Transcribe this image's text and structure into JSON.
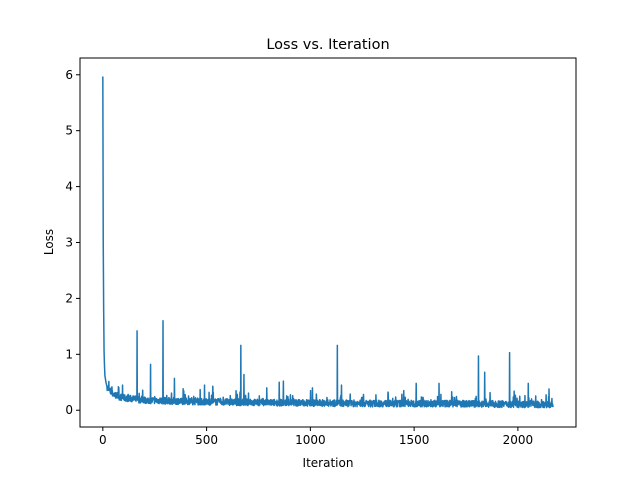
{
  "chart_data": {
    "type": "line",
    "title": "Loss vs. Iteration",
    "xlabel": "Iteration",
    "ylabel": "Loss",
    "xlim": [
      -110,
      2280
    ],
    "ylim": [
      -0.3,
      6.3
    ],
    "xticks": [
      0,
      500,
      1000,
      1500,
      2000
    ],
    "yticks": [
      0,
      1,
      2,
      3,
      4,
      5,
      6
    ],
    "grid": false,
    "legend": "none",
    "line_color": "#1f77b4",
    "iterations": 2170,
    "series": [
      {
        "x": [
          0,
          2,
          4,
          6,
          8,
          10,
          15,
          20,
          30,
          40,
          60,
          80,
          100,
          150,
          200,
          300,
          400,
          500,
          700,
          1000,
          1300,
          1600,
          1900,
          2170
        ],
        "y": [
          5.97,
          3.0,
          1.8,
          1.05,
          0.8,
          0.62,
          0.5,
          0.42,
          0.36,
          0.31,
          0.27,
          0.24,
          0.22,
          0.2,
          0.18,
          0.17,
          0.16,
          0.15,
          0.14,
          0.13,
          0.12,
          0.12,
          0.11,
          0.1
        ],
        "spikes": [
          [
            75,
            0.42
          ],
          [
            95,
            0.45
          ],
          [
            165,
            1.42
          ],
          [
            230,
            0.82
          ],
          [
            290,
            1.6
          ],
          [
            345,
            0.57
          ],
          [
            490,
            0.45
          ],
          [
            530,
            0.43
          ],
          [
            665,
            1.16
          ],
          [
            680,
            0.64
          ],
          [
            790,
            0.4
          ],
          [
            850,
            0.5
          ],
          [
            870,
            0.52
          ],
          [
            1010,
            0.4
          ],
          [
            1130,
            1.16
          ],
          [
            1150,
            0.45
          ],
          [
            1450,
            0.35
          ],
          [
            1510,
            0.48
          ],
          [
            1620,
            0.48
          ],
          [
            1810,
            0.97
          ],
          [
            1840,
            0.68
          ],
          [
            1960,
            1.03
          ],
          [
            2050,
            0.48
          ],
          [
            2150,
            0.38
          ]
        ]
      }
    ]
  }
}
